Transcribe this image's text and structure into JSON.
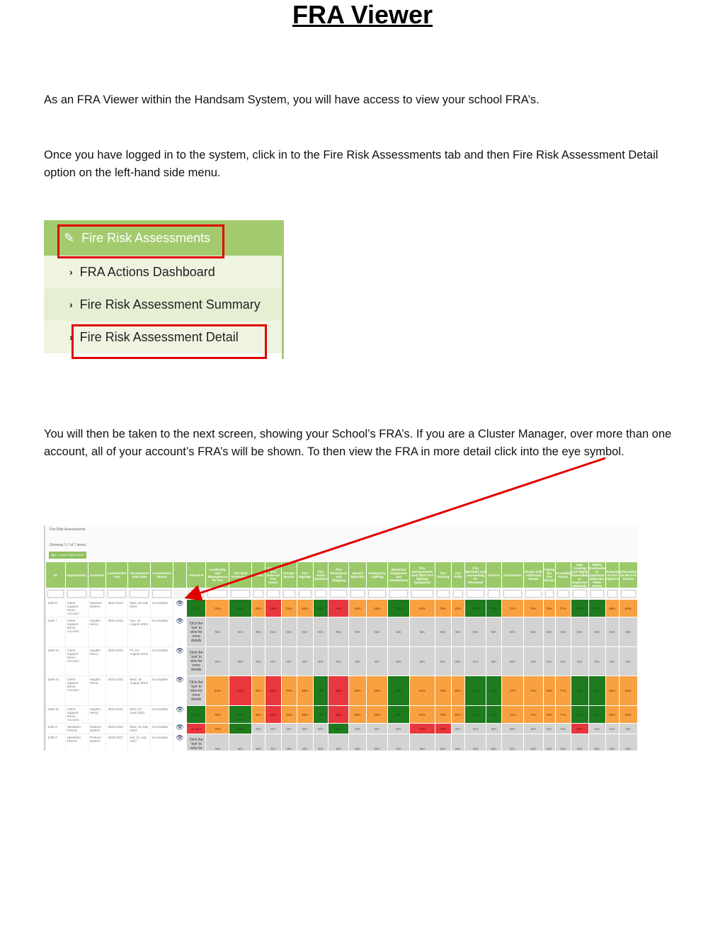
{
  "title": "FRA Viewer",
  "paragraphs": [
    "As an FRA Viewer within the Handsam System, you will have access to view your school FRA’s.",
    "Once you have logged in to the system, click in to the Fire Risk Assessments tab and then Fire Risk Assessment Detail option on the left-hand side menu.",
    "You will then be taken to the next screen, showing your School’s FRA’s. If you are a Cluster Manager, over more than one account, all of your account’s FRA’s will be shown. To then view the FRA in more detail click into the eye symbol."
  ],
  "menu": {
    "header": "Fire Risk Assessments",
    "header_icon": "pencil-icon",
    "items": [
      "FRA Actions Dashboard",
      "Fire Risk Assessment Summary",
      "Fire Risk Assessment Detail"
    ]
  },
  "screen": {
    "title": "Fire Risk Assessments",
    "summary": "Showing 1-7 of 7 items.",
    "export_label": "Export Table Data",
    "filter_all": "All",
    "columns": [
      "ID",
      "Organisation",
      "Assessor",
      "Assessment Year",
      "Assessment Start Date",
      "Assessment Status",
      "",
      "Overall %",
      "Leadership and Management for Fire",
      "Fire Risk Assessment",
      "Alarm",
      "Internal and External Fire Doors",
      "Escape Routes",
      "Fire Signage",
      "Fire Alarm Systems",
      "Fire Resistance and Stopping",
      "Hazard Materials",
      "Emergency Lighting",
      "Electrical Equipment and Installations",
      "Fire Extinguishers and Other Fire fighting Equipment",
      "Fire Training",
      "Fire Drills",
      "Fire Marshals and Accounting for Personnel",
      "Visitors",
      "Contractors",
      "People with Additional Needs",
      "Calling the Fire Service",
      "Assembly Points",
      "Gas, Cooking and Highly Flammable or Explosive Materials",
      "Highly Flammable or Explosive Materials Other Stores",
      "Patients or Fire Fighters",
      "Information for the Fire Service"
    ],
    "click_text": "Click the 'eye' to view for more details",
    "colors": {
      "green": "#1e7b1e",
      "orange": "#f9a040",
      "red": "#e8383d",
      "na": "#d3d3d3"
    },
    "rows": [
      {
        "id": "1196-6",
        "org": "Client Support Demo Account",
        "assessor": "Neptune System",
        "year": "2022-2023",
        "date": "Wed, 05 July 2023",
        "status": "Incomplete",
        "overall": "33%",
        "overall_c": "g",
        "scores": [
          [
            "78%",
            "o"
          ],
          [
            "85%",
            "g"
          ],
          [
            "65%",
            "o"
          ],
          [
            "23%",
            "r"
          ],
          [
            "78%",
            "o"
          ],
          [
            "59%",
            "o"
          ],
          [
            "83%",
            "g"
          ],
          [
            "45%",
            "r"
          ],
          [
            "69%",
            "o"
          ],
          [
            "58%",
            "o"
          ],
          [
            "83%",
            "g"
          ],
          [
            "63%",
            "o"
          ],
          [
            "78%",
            "o"
          ],
          [
            "63%",
            "o"
          ],
          [
            "83%",
            "g"
          ],
          [
            "83%",
            "g"
          ],
          [
            "72%",
            "o"
          ],
          [
            "75%",
            "o"
          ],
          [
            "76%",
            "o"
          ],
          [
            "77%",
            "o"
          ],
          [
            "83%",
            "g"
          ],
          [
            "84%",
            "g"
          ],
          [
            "68%",
            "o"
          ],
          [
            "69%",
            "o"
          ]
        ]
      },
      {
        "id": "1196-7",
        "org": "Client Support Demo Account",
        "assessor": "Hayden Henry",
        "year": "2022-2023",
        "date": "Tue, 22 August 2023",
        "status": "Incomplete",
        "overall": null,
        "scores": "na"
      },
      {
        "id": "1196-13",
        "org": "Client Support Demo Account",
        "assessor": "Hayden Henry",
        "year": "2022-2023",
        "date": "Fri, 04 August 2023",
        "status": "Incomplete",
        "overall": null,
        "scores": "na"
      },
      {
        "id": "1196-14",
        "org": "Client Support Demo Account",
        "assessor": "Hayden Henry",
        "year": "2022-2023",
        "date": "Wed, 16 August 2023",
        "status": "Incomplete",
        "overall": null,
        "scores": [
          [
            "34%",
            "o"
          ],
          [
            "44%",
            "r"
          ],
          [
            "65%",
            "o"
          ],
          [
            "23%",
            "r"
          ],
          [
            "78%",
            "o"
          ],
          [
            "59%",
            "o"
          ],
          [
            "83%",
            "g"
          ],
          [
            "45%",
            "r"
          ],
          [
            "69%",
            "o"
          ],
          [
            "58%",
            "o"
          ],
          [
            "83%",
            "g"
          ],
          [
            "63%",
            "o"
          ],
          [
            "78%",
            "o"
          ],
          [
            "63%",
            "o"
          ],
          [
            "83%",
            "g"
          ],
          [
            "83%",
            "g"
          ],
          [
            "72%",
            "o"
          ],
          [
            "75%",
            "o"
          ],
          [
            "76%",
            "o"
          ],
          [
            "77%",
            "o"
          ],
          [
            "83%",
            "g"
          ],
          [
            "84%",
            "g"
          ],
          [
            "68%",
            "o"
          ],
          [
            "69%",
            "o"
          ]
        ]
      },
      {
        "id": "1196-15",
        "org": "Client Support Demo Account",
        "assessor": "Hayden Henry",
        "year": "2021-2022",
        "date": "Wed, 07 June 2022",
        "status": "Incomplete",
        "overall": "64.04%",
        "overall_c": "g",
        "scores": [
          [
            "78%",
            "o"
          ],
          [
            "85%",
            "g"
          ],
          [
            "65%",
            "o"
          ],
          [
            "23%",
            "r"
          ],
          [
            "78%",
            "o"
          ],
          [
            "59%",
            "o"
          ],
          [
            "83%",
            "g"
          ],
          [
            "45%",
            "r"
          ],
          [
            "69%",
            "o"
          ],
          [
            "58%",
            "o"
          ],
          [
            "83%",
            "g"
          ],
          [
            "63%",
            "o"
          ],
          [
            "78%",
            "o"
          ],
          [
            "63%",
            "o"
          ],
          [
            "83%",
            "g"
          ],
          [
            "83%",
            "g"
          ],
          [
            "72%",
            "o"
          ],
          [
            "75%",
            "o"
          ],
          [
            "76%",
            "o"
          ],
          [
            "77%",
            "o"
          ],
          [
            "83%",
            "g"
          ],
          [
            "84%",
            "g"
          ],
          [
            "68%",
            "o"
          ],
          [
            "69%",
            "o"
          ]
        ]
      },
      {
        "id": "1196-2",
        "org": "Handsam Fitness",
        "assessor": "TestLive System",
        "year": "2023-2024",
        "date": "Wed, 03 July 2024",
        "status": "Incomplete",
        "overall": "11.11%",
        "overall_c": "r",
        "scores": [
          [
            "75%",
            "o"
          ],
          [
            "80%",
            "g"
          ],
          [
            "N/A",
            "n"
          ],
          [
            "N/A",
            "n"
          ],
          [
            "N/A",
            "n"
          ],
          [
            "N/A",
            "n"
          ],
          [
            "N/A",
            "n"
          ],
          [
            "83%",
            "g"
          ],
          [
            "N/A",
            "n"
          ],
          [
            "N/A",
            "n"
          ],
          [
            "N/A",
            "n"
          ],
          [
            "12%",
            "r"
          ],
          [
            "10%",
            "r"
          ],
          [
            "N/A",
            "n"
          ],
          [
            "N/A",
            "n"
          ],
          [
            "N/A",
            "n"
          ],
          [
            "N/A",
            "n"
          ],
          [
            "N/A",
            "n"
          ],
          [
            "N/A",
            "n"
          ],
          [
            "N/A",
            "n"
          ],
          [
            "22%",
            "r"
          ],
          [
            "N/A",
            "n"
          ],
          [
            "N/A",
            "n"
          ],
          [
            "N/A",
            "n"
          ]
        ]
      },
      {
        "id": "1196-3",
        "org": "Handsam Fitness",
        "assessor": "TestLive System",
        "year": "2026-2027",
        "date": "Sat, 01 July 2027",
        "status": "Incomplete",
        "overall": null,
        "scores": "na"
      }
    ]
  }
}
